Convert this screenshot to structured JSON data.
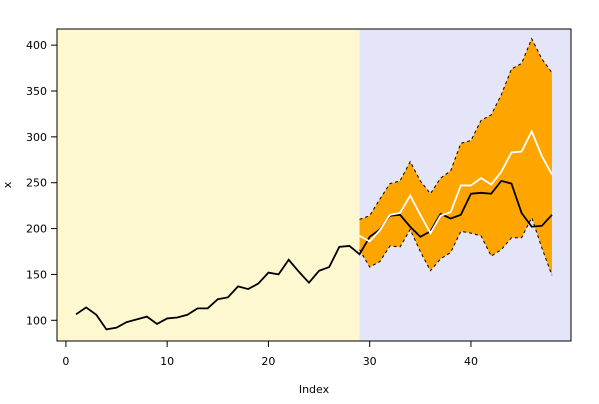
{
  "chart_data": {
    "type": "line",
    "xlabel": "Index",
    "ylabel": "x",
    "x": [
      1,
      2,
      3,
      4,
      5,
      6,
      7,
      8,
      9,
      10,
      11,
      12,
      13,
      14,
      15,
      16,
      17,
      18,
      19,
      20,
      21,
      22,
      23,
      24,
      25,
      26,
      27,
      28,
      29,
      30,
      31,
      32,
      33,
      34,
      35,
      36,
      37,
      38,
      39,
      40,
      41,
      42,
      43,
      44,
      45,
      46,
      47,
      48
    ],
    "xlim": [
      -0.88,
      49.88
    ],
    "ylim": [
      77.4,
      417.6
    ],
    "xticks": [
      0,
      10,
      20,
      30,
      40
    ],
    "yticks": [
      100,
      150,
      200,
      250,
      300,
      350,
      400
    ],
    "shade_split": 29,
    "shade_colors": [
      "#fdf8d0",
      "#e5e5f9"
    ],
    "band_color": "#ffa500",
    "series": [
      {
        "role": "actual",
        "color": "#000000",
        "values": [
          106.5,
          114,
          106,
          90,
          92,
          98,
          101,
          104,
          96,
          102,
          103,
          106,
          113,
          113,
          123,
          125,
          137,
          134,
          140,
          152,
          150,
          166,
          153,
          141,
          154,
          158,
          180,
          181,
          172,
          191,
          199,
          214,
          215,
          202,
          191,
          197,
          216,
          211,
          215,
          238,
          239,
          238,
          252,
          249,
          217,
          202,
          203,
          215
        ]
      },
      {
        "role": "forecast",
        "color": "#ffffff",
        "values": [
          null,
          null,
          null,
          null,
          null,
          null,
          null,
          null,
          null,
          null,
          null,
          null,
          null,
          null,
          null,
          null,
          null,
          null,
          null,
          null,
          null,
          null,
          null,
          null,
          null,
          null,
          null,
          null,
          192,
          186,
          198,
          215,
          217,
          236,
          215,
          195,
          214,
          218,
          247,
          247,
          255,
          248,
          262,
          283,
          284,
          306,
          279,
          259
        ]
      },
      {
        "role": "upper",
        "color": "#000000",
        "values": [
          null,
          null,
          null,
          null,
          null,
          null,
          null,
          null,
          null,
          null,
          null,
          null,
          null,
          null,
          null,
          null,
          null,
          null,
          null,
          null,
          null,
          null,
          null,
          null,
          null,
          null,
          null,
          null,
          210,
          214,
          232,
          249,
          252,
          273,
          252,
          238,
          255,
          263,
          293,
          296,
          318,
          324,
          346,
          374,
          380,
          407,
          385,
          370
        ]
      },
      {
        "role": "lower",
        "color": "#000000",
        "values": [
          null,
          null,
          null,
          null,
          null,
          null,
          null,
          null,
          null,
          null,
          null,
          null,
          null,
          null,
          null,
          null,
          null,
          null,
          null,
          null,
          null,
          null,
          null,
          null,
          null,
          null,
          null,
          null,
          177,
          158,
          164,
          181,
          180,
          199,
          175,
          154,
          167,
          174,
          197,
          195,
          192,
          170,
          177,
          190,
          190,
          212,
          179,
          149
        ]
      }
    ]
  }
}
